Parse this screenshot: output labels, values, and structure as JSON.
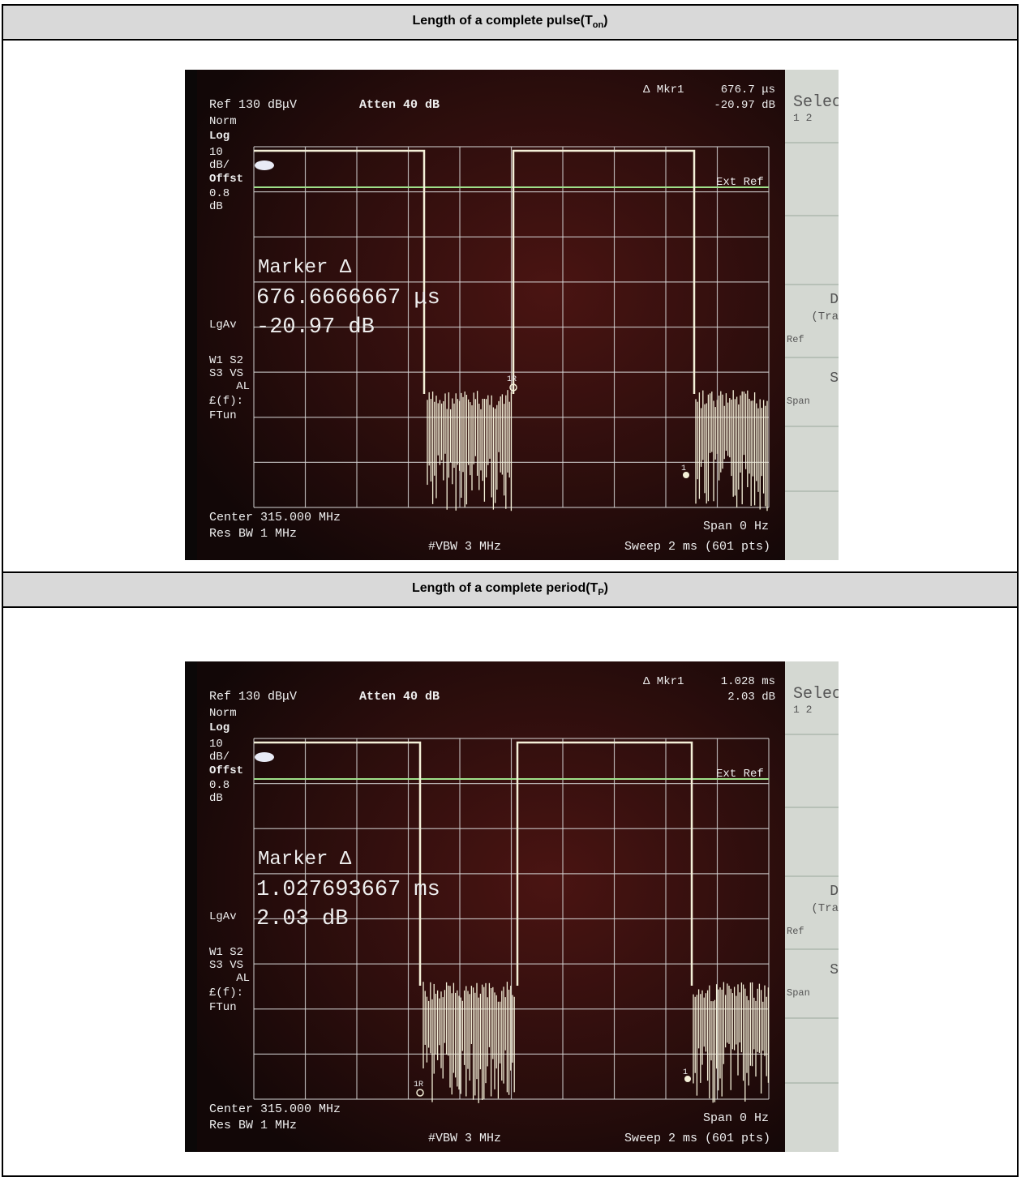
{
  "table": {
    "rows": [
      {
        "header": [
          "Length of a complete pulse(T",
          "on",
          ")"
        ],
        "screen": {
          "ref": "Ref 130 dBμV",
          "atten": "Atten 40 dB",
          "mkr": "Δ Mkr1",
          "mkr_value": "676.7 μs",
          "mkr_db": "-20.97 dB",
          "left_labels": [
            "Norm",
            "Log",
            "10",
            "dB/",
            "Offst",
            "0.8",
            "dB",
            "LgAv",
            "W1 S2",
            "S3 VS",
            "AL",
            "£(f):",
            "FTun"
          ],
          "ext_ref": "Ext Ref",
          "marker_title": "Marker Δ",
          "marker_time": "676.6666667 μs",
          "marker_db": "-20.97 dB",
          "marker_ref": "1R",
          "marker_delta": "1",
          "center": "Center 315.000 MHz",
          "res_bw": "Res BW 1 MHz",
          "vbw": "#VBW 3 MHz",
          "span": "Span 0 Hz",
          "sweep": "Sweep 2 ms (601 pts)",
          "softkeys": [
            "Selec",
            "1  2",
            "D",
            "(Tra",
            "Ref",
            "S",
            "Span"
          ]
        }
      },
      {
        "header": [
          "Length of a complete period(T",
          "P",
          ")"
        ],
        "screen": {
          "ref": "Ref 130 dBμV",
          "atten": "Atten 40 dB",
          "mkr": "Δ Mkr1",
          "mkr_value": "1.028 ms",
          "mkr_db": "2.03 dB",
          "left_labels": [
            "Norm",
            "Log",
            "10",
            "dB/",
            "Offst",
            "0.8",
            "dB",
            "LgAv",
            "W1 S2",
            "S3 VS",
            "AL",
            "£(f):",
            "FTun"
          ],
          "ext_ref": "Ext Ref",
          "marker_title": "Marker Δ",
          "marker_time": "1.027693667 ms",
          "marker_db": "2.03 dB",
          "marker_ref": "1R",
          "marker_delta": "1",
          "center": "Center 315.000 MHz",
          "res_bw": "Res BW 1 MHz",
          "vbw": "#VBW 3 MHz",
          "span": "Span 0 Hz",
          "sweep": "Sweep 2 ms (601 pts)",
          "softkeys": [
            "Selec",
            "1  2",
            "D",
            "(Tra",
            "Ref",
            "S",
            "Span"
          ]
        }
      }
    ]
  }
}
